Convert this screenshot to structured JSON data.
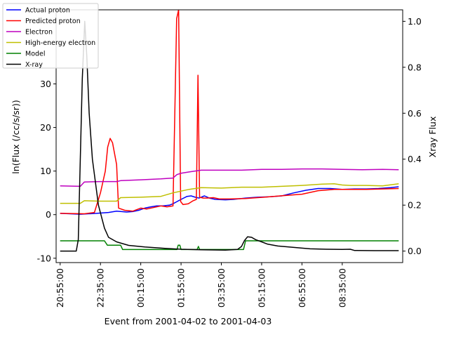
{
  "chart_data": {
    "type": "line",
    "title": "",
    "xlabel": "Event from 2001-04-02 to 2001-04-03",
    "ylabel_left": "ln(Flux (/cc/s/sr))",
    "ylabel_right": "Xray Flux",
    "x_ticks": [
      "20:55:00",
      "22:35:00",
      "00:15:00",
      "01:55:00",
      "03:35:00",
      "05:15:00",
      "06:55:00",
      "08:35:00"
    ],
    "x_range_minutes": [
      -10,
      850
    ],
    "ylim_left": [
      -11,
      47
    ],
    "yticks_left": [
      -10,
      0,
      10,
      20,
      30
    ],
    "ylim_right": [
      -0.05,
      1.05
    ],
    "yticks_right": [
      0.0,
      0.2,
      0.4,
      0.6,
      0.8,
      1.0
    ],
    "legend_position": "upper-left",
    "series": [
      {
        "name": "Actual proton",
        "color": "#0000ff",
        "axis": "left",
        "points": [
          [
            0,
            0.3
          ],
          [
            50,
            0.1
          ],
          [
            90,
            0.3
          ],
          [
            120,
            0.5
          ],
          [
            140,
            0.8
          ],
          [
            165,
            0.6
          ],
          [
            180,
            0.7
          ],
          [
            195,
            1.0
          ],
          [
            210,
            1.5
          ],
          [
            225,
            1.8
          ],
          [
            240,
            2.0
          ],
          [
            255,
            2.0
          ],
          [
            272,
            2.2
          ],
          [
            280,
            2.5
          ],
          [
            290,
            3.0
          ],
          [
            300,
            3.5
          ],
          [
            315,
            4.2
          ],
          [
            325,
            4.3
          ],
          [
            335,
            4.0
          ],
          [
            345,
            3.8
          ],
          [
            358,
            4.3
          ],
          [
            370,
            3.8
          ],
          [
            385,
            3.5
          ],
          [
            410,
            3.4
          ],
          [
            430,
            3.5
          ],
          [
            460,
            3.8
          ],
          [
            490,
            4.0
          ],
          [
            520,
            4.1
          ],
          [
            550,
            4.3
          ],
          [
            580,
            5.0
          ],
          [
            610,
            5.6
          ],
          [
            640,
            6.0
          ],
          [
            670,
            6.0
          ],
          [
            700,
            5.8
          ],
          [
            730,
            5.9
          ],
          [
            760,
            5.9
          ],
          [
            790,
            6.0
          ],
          [
            820,
            6.2
          ],
          [
            840,
            6.4
          ]
        ]
      },
      {
        "name": "Predicted proton",
        "color": "#ff0000",
        "axis": "left",
        "points": [
          [
            0,
            0.3
          ],
          [
            60,
            0.2
          ],
          [
            85,
            0.5
          ],
          [
            100,
            5.0
          ],
          [
            112,
            10.0
          ],
          [
            118,
            15.5
          ],
          [
            124,
            17.5
          ],
          [
            130,
            16.5
          ],
          [
            135,
            14.0
          ],
          [
            140,
            11.5
          ],
          [
            145,
            1.5
          ],
          [
            160,
            1.0
          ],
          [
            180,
            0.8
          ],
          [
            200,
            1.5
          ],
          [
            215,
            1.3
          ],
          [
            230,
            1.6
          ],
          [
            250,
            2.0
          ],
          [
            265,
            1.8
          ],
          [
            280,
            2.0
          ],
          [
            289,
            45.0
          ],
          [
            294,
            47.0
          ],
          [
            299,
            3.0
          ],
          [
            305,
            2.3
          ],
          [
            318,
            2.5
          ],
          [
            330,
            3.2
          ],
          [
            338,
            3.5
          ],
          [
            342,
            32.0
          ],
          [
            346,
            4.0
          ],
          [
            355,
            3.8
          ],
          [
            365,
            3.8
          ],
          [
            380,
            3.9
          ],
          [
            395,
            3.6
          ],
          [
            420,
            3.6
          ],
          [
            460,
            3.7
          ],
          [
            490,
            3.9
          ],
          [
            520,
            4.1
          ],
          [
            560,
            4.4
          ],
          [
            600,
            4.7
          ],
          [
            640,
            5.5
          ],
          [
            680,
            5.8
          ],
          [
            720,
            5.8
          ],
          [
            760,
            5.8
          ],
          [
            800,
            5.9
          ],
          [
            840,
            6.0
          ]
        ]
      },
      {
        "name": "Electron",
        "color": "#bf00bf",
        "axis": "left",
        "points": [
          [
            0,
            6.6
          ],
          [
            50,
            6.5
          ],
          [
            60,
            7.5
          ],
          [
            100,
            7.6
          ],
          [
            140,
            7.6
          ],
          [
            150,
            7.8
          ],
          [
            200,
            8.0
          ],
          [
            250,
            8.2
          ],
          [
            280,
            8.4
          ],
          [
            290,
            9.2
          ],
          [
            300,
            9.5
          ],
          [
            320,
            9.8
          ],
          [
            350,
            10.2
          ],
          [
            400,
            10.2
          ],
          [
            450,
            10.2
          ],
          [
            500,
            10.4
          ],
          [
            550,
            10.4
          ],
          [
            600,
            10.5
          ],
          [
            650,
            10.5
          ],
          [
            700,
            10.4
          ],
          [
            750,
            10.3
          ],
          [
            800,
            10.4
          ],
          [
            840,
            10.3
          ]
        ]
      },
      {
        "name": "High-energy electron",
        "color": "#bfbf00",
        "axis": "left",
        "points": [
          [
            0,
            2.6
          ],
          [
            50,
            2.6
          ],
          [
            60,
            3.2
          ],
          [
            100,
            3.1
          ],
          [
            140,
            3.1
          ],
          [
            150,
            3.9
          ],
          [
            200,
            4.0
          ],
          [
            250,
            4.2
          ],
          [
            280,
            5.0
          ],
          [
            300,
            5.4
          ],
          [
            320,
            5.8
          ],
          [
            350,
            6.2
          ],
          [
            400,
            6.1
          ],
          [
            450,
            6.3
          ],
          [
            500,
            6.3
          ],
          [
            550,
            6.5
          ],
          [
            600,
            6.7
          ],
          [
            650,
            7.0
          ],
          [
            680,
            7.1
          ],
          [
            700,
            6.8
          ],
          [
            720,
            6.7
          ],
          [
            760,
            6.7
          ],
          [
            800,
            6.6
          ],
          [
            840,
            7.1
          ]
        ]
      },
      {
        "name": "Model",
        "color": "#008000",
        "axis": "left",
        "points": [
          [
            0,
            -6.0
          ],
          [
            110,
            -6.0
          ],
          [
            117,
            -7.0
          ],
          [
            150,
            -7.0
          ],
          [
            155,
            -8.0
          ],
          [
            290,
            -8.0
          ],
          [
            293,
            -7.0
          ],
          [
            297,
            -7.0
          ],
          [
            300,
            -8.0
          ],
          [
            340,
            -8.0
          ],
          [
            343,
            -7.3
          ],
          [
            346,
            -8.0
          ],
          [
            455,
            -8.0
          ],
          [
            460,
            -6.0
          ],
          [
            840,
            -6.0
          ]
        ]
      },
      {
        "name": "X-ray",
        "color": "#000000",
        "axis": "right",
        "points": [
          [
            0,
            0.0
          ],
          [
            40,
            0.0
          ],
          [
            45,
            0.05
          ],
          [
            55,
            0.75
          ],
          [
            61,
            1.0
          ],
          [
            66,
            0.85
          ],
          [
            72,
            0.6
          ],
          [
            80,
            0.4
          ],
          [
            95,
            0.2
          ],
          [
            110,
            0.1
          ],
          [
            120,
            0.06
          ],
          [
            140,
            0.04
          ],
          [
            170,
            0.025
          ],
          [
            210,
            0.018
          ],
          [
            260,
            0.012
          ],
          [
            300,
            0.008
          ],
          [
            350,
            0.006
          ],
          [
            410,
            0.004
          ],
          [
            440,
            0.007
          ],
          [
            450,
            0.02
          ],
          [
            457,
            0.045
          ],
          [
            465,
            0.062
          ],
          [
            475,
            0.06
          ],
          [
            485,
            0.05
          ],
          [
            500,
            0.04
          ],
          [
            515,
            0.03
          ],
          [
            540,
            0.022
          ],
          [
            580,
            0.016
          ],
          [
            620,
            0.01
          ],
          [
            660,
            0.008
          ],
          [
            700,
            0.007
          ],
          [
            720,
            0.008
          ],
          [
            730,
            0.003
          ],
          [
            780,
            0.002
          ],
          [
            820,
            0.002
          ],
          [
            840,
            0.002
          ]
        ]
      }
    ]
  }
}
